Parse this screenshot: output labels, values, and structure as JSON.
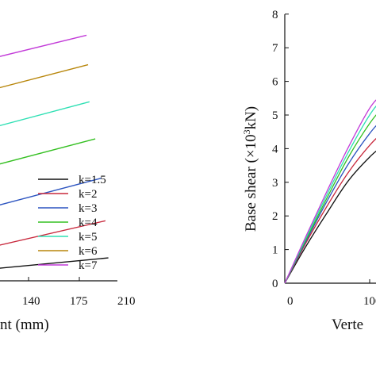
{
  "colors": {
    "k=1.5": "#111111",
    "k=2": "#c8283c",
    "k=3": "#2c54c0",
    "k=4": "#35c022",
    "k=5": "#2fe0b4",
    "k=6": "#b8860b",
    "k=7": "#c23ad8"
  },
  "chart_data": [
    {
      "type": "line",
      "xlabel": "nt (mm)",
      "ylabel": "",
      "xlim": [
        100,
        210
      ],
      "x_ticks": [
        "140",
        "175",
        "210"
      ],
      "legend": [
        "k=1.5",
        "k=2",
        "k=3",
        "k=4",
        "k=5",
        "k=6",
        "k=7"
      ],
      "series": [
        {
          "name": "k=1.5",
          "x": [
            100,
            195
          ],
          "y": [
            0.18,
            0.42
          ]
        },
        {
          "name": "k=2",
          "x": [
            100,
            193
          ],
          "y": [
            0.53,
            1.1
          ]
        },
        {
          "name": "k=3",
          "x": [
            100,
            190
          ],
          "y": [
            1.25,
            1.88
          ]
        },
        {
          "name": "k=4",
          "x": [
            100,
            186
          ],
          "y": [
            2.0,
            2.6
          ]
        },
        {
          "name": "k=5",
          "x": [
            100,
            182
          ],
          "y": [
            2.7,
            3.28
          ]
        },
        {
          "name": "k=6",
          "x": [
            100,
            181
          ],
          "y": [
            3.4,
            3.96
          ]
        },
        {
          "name": "k=7",
          "x": [
            100,
            180
          ],
          "y": [
            3.98,
            4.5
          ]
        }
      ],
      "ylim": [
        0,
        5
      ]
    },
    {
      "type": "line",
      "xlabel": "Verte",
      "ylabel": "Base shear (×10",
      "ylabel_sup": "3",
      "ylabel_tail": "kN)",
      "xlim": [
        0,
        130
      ],
      "ylim": [
        0,
        8
      ],
      "x_ticks": [
        "0",
        "100"
      ],
      "y_ticks": [
        "0",
        "1",
        "2",
        "3",
        "4",
        "5",
        "6",
        "7",
        "8"
      ],
      "series": [
        {
          "name": "k=1.5",
          "x": [
            0,
            25,
            50,
            75,
            100,
            115,
            130
          ],
          "y": [
            0,
            1.1,
            2.1,
            3.05,
            3.75,
            4.05,
            4.2
          ]
        },
        {
          "name": "k=2",
          "x": [
            0,
            25,
            50,
            75,
            100,
            115,
            130
          ],
          "y": [
            0,
            1.2,
            2.3,
            3.3,
            4.1,
            4.45,
            4.6
          ]
        },
        {
          "name": "k=3",
          "x": [
            0,
            25,
            50,
            75,
            100,
            115,
            130
          ],
          "y": [
            0,
            1.25,
            2.45,
            3.55,
            4.45,
            4.85,
            5.05
          ]
        },
        {
          "name": "k=4",
          "x": [
            0,
            25,
            50,
            75,
            100,
            115,
            130
          ],
          "y": [
            0,
            1.3,
            2.55,
            3.75,
            4.75,
            5.2,
            5.45
          ]
        },
        {
          "name": "k=5",
          "x": [
            0,
            25,
            50,
            75,
            100,
            115,
            130
          ],
          "y": [
            0,
            1.35,
            2.65,
            3.9,
            5.0,
            5.45,
            5.7
          ]
        },
        {
          "name": "k=7",
          "x": [
            0,
            25,
            50,
            75,
            100,
            115,
            130
          ],
          "y": [
            0,
            1.4,
            2.75,
            4.05,
            5.2,
            5.6,
            5.78
          ]
        }
      ]
    }
  ]
}
